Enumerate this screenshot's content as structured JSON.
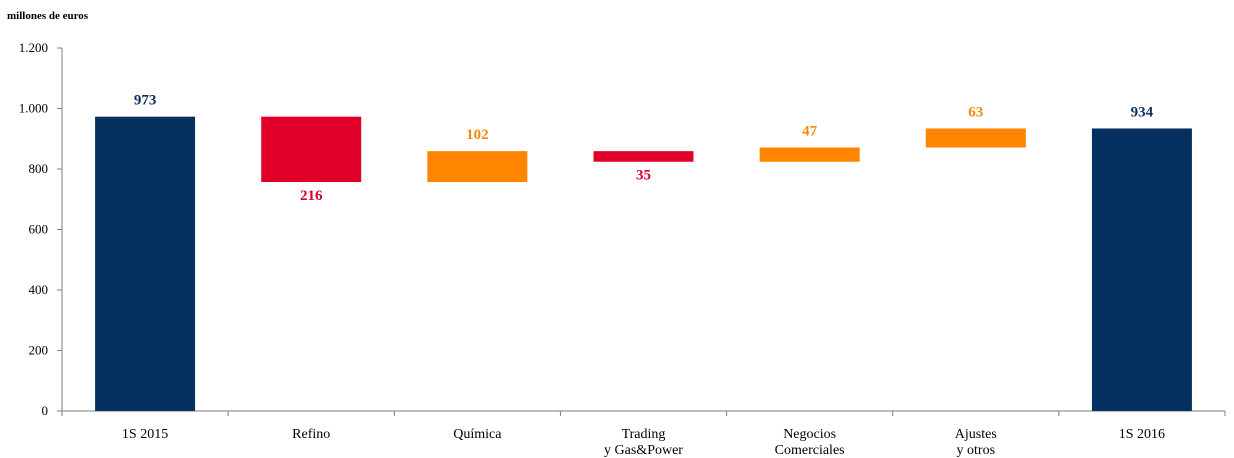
{
  "chart_data": {
    "type": "waterfall",
    "unit_label": "millones de euros",
    "categories": [
      [
        "1S 2015"
      ],
      [
        "Refino"
      ],
      [
        "Química"
      ],
      [
        "Trading",
        "y Gas&Power"
      ],
      [
        "Negocios",
        "Comerciales"
      ],
      [
        "Ajustes",
        "y otros"
      ],
      [
        "1S 2016"
      ]
    ],
    "steps": [
      {
        "kind": "total",
        "value": 973,
        "label": "973"
      },
      {
        "kind": "decrease",
        "value": 216,
        "label": "216"
      },
      {
        "kind": "increase",
        "value": 102,
        "label": "102"
      },
      {
        "kind": "decrease",
        "value": 35,
        "label": "35"
      },
      {
        "kind": "increase",
        "value": 47,
        "label": "47"
      },
      {
        "kind": "increase",
        "value": 63,
        "label": "63"
      },
      {
        "kind": "total",
        "value": 934,
        "label": "934"
      }
    ],
    "ylim": [
      0,
      1200
    ],
    "yticks": [
      0,
      200,
      400,
      600,
      800,
      1000,
      1200
    ],
    "ytick_labels": [
      "0",
      "200",
      "400",
      "600",
      "800",
      "1.000",
      "1.200"
    ],
    "colors": {
      "total": "#06305f",
      "decrease": "#e0002a",
      "increase": "#ff8500",
      "label_total": "#0b3160",
      "label_decrease": "#d2002a",
      "label_increase": "#f28a0c"
    }
  }
}
